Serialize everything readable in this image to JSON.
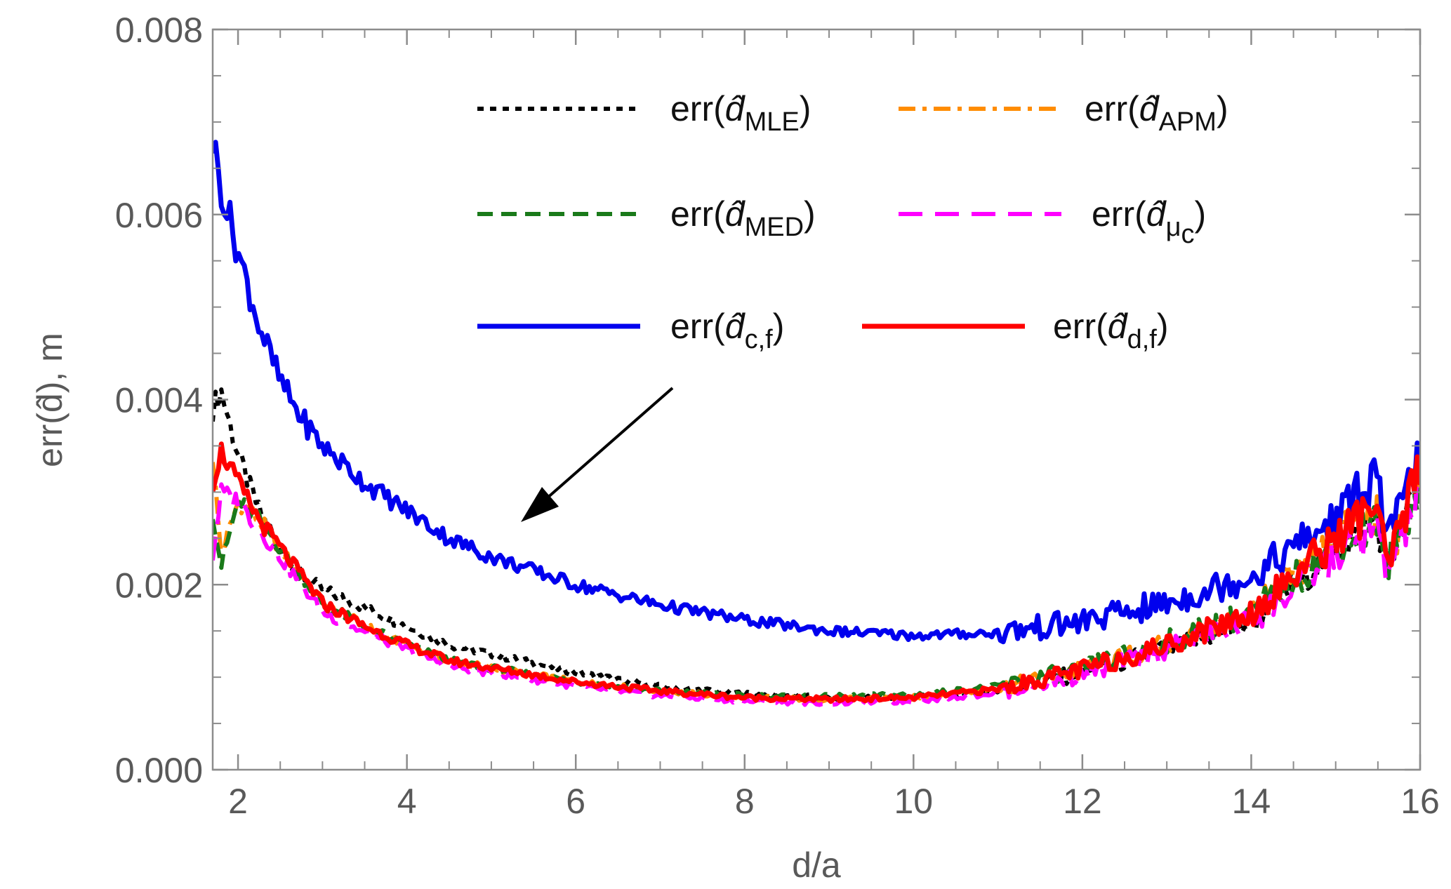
{
  "chart_data": {
    "type": "line",
    "title": "",
    "xlabel": "d/a",
    "ylabel": "err(d̂), m",
    "xlim": [
      1.7,
      16
    ],
    "ylim": [
      0,
      0.008
    ],
    "xticks": [
      2,
      4,
      6,
      8,
      10,
      12,
      14,
      16
    ],
    "xtick_labels": [
      "2",
      "4",
      "6",
      "8",
      "10",
      "12",
      "14",
      "16"
    ],
    "yticks": [
      0,
      0.002,
      0.004,
      0.006,
      0.008
    ],
    "ytick_labels": [
      "0.000",
      "0.002",
      "0.004",
      "0.006",
      "0.008"
    ],
    "grid": false,
    "legend_position": "top-right",
    "annotation": "arrow pointing from legend to curves",
    "x": [
      1.7,
      1.8,
      2.0,
      2.25,
      2.5,
      2.75,
      3.0,
      3.5,
      4.0,
      4.5,
      5.0,
      6.0,
      7.0,
      8.0,
      9.0,
      10.0,
      11.0,
      12.0,
      13.0,
      14.0,
      15.0,
      15.5,
      15.6,
      16.0
    ],
    "series": [
      {
        "name": "err(d̂MLE)",
        "label_parts": [
          "err(",
          "d",
          "MLE",
          ")"
        ],
        "color": "#000000",
        "dash": "dotted",
        "values": [
          0.0039,
          0.0041,
          0.0034,
          0.0028,
          0.0024,
          0.0021,
          0.00195,
          0.00175,
          0.00155,
          0.00135,
          0.00125,
          0.00105,
          0.0009,
          0.00082,
          0.00078,
          0.00078,
          0.00085,
          0.00105,
          0.0013,
          0.0016,
          0.0024,
          0.0027,
          0.0022,
          0.0031
        ]
      },
      {
        "name": "err(d̂APM)",
        "label_parts": [
          "err(",
          "d",
          "APM",
          ")"
        ],
        "color": "#ff8c00",
        "dash": "dashdot",
        "values": [
          0.0034,
          0.0023,
          0.0029,
          0.0027,
          0.0024,
          0.0021,
          0.0018,
          0.00155,
          0.00135,
          0.00118,
          0.0011,
          0.00095,
          0.00085,
          0.00078,
          0.00076,
          0.00078,
          0.00088,
          0.00108,
          0.00135,
          0.0017,
          0.0025,
          0.0028,
          0.0022,
          0.0032
        ]
      },
      {
        "name": "err(d̂MED)",
        "label_parts": [
          "err(",
          "d",
          "MED",
          ")"
        ],
        "color": "#1a7a1a",
        "dash": "dashed",
        "values": [
          0.0028,
          0.0022,
          0.0029,
          0.0027,
          0.0024,
          0.0021,
          0.0018,
          0.00155,
          0.00135,
          0.00118,
          0.0011,
          0.00095,
          0.00085,
          0.0008,
          0.00079,
          0.00081,
          0.0009,
          0.0011,
          0.00138,
          0.0017,
          0.0024,
          0.0027,
          0.0022,
          0.0031
        ]
      },
      {
        "name": "err(d̂μc)",
        "label_parts": [
          "err(",
          "d",
          "μ",
          "c",
          ")"
        ],
        "color": "#ff00ff",
        "dash": "longdash",
        "values": [
          0.0023,
          0.003,
          0.0029,
          0.0026,
          0.0023,
          0.002,
          0.0017,
          0.00148,
          0.0013,
          0.00112,
          0.00104,
          0.0009,
          0.0008,
          0.00074,
          0.00072,
          0.00074,
          0.00083,
          0.00102,
          0.0013,
          0.0016,
          0.0023,
          0.0026,
          0.0021,
          0.003
        ]
      },
      {
        "name": "err(d̂c,f)",
        "label_parts": [
          "err(",
          "d",
          "c,f",
          ")"
        ],
        "color": "#0000ee",
        "dash": "solid",
        "values": [
          0.0068,
          0.0063,
          0.0056,
          0.0048,
          0.0042,
          0.0038,
          0.0035,
          0.0031,
          0.0028,
          0.0025,
          0.0023,
          0.002,
          0.00178,
          0.00162,
          0.0015,
          0.00145,
          0.00148,
          0.0016,
          0.0018,
          0.0021,
          0.0027,
          0.0032,
          0.0024,
          0.0034
        ]
      },
      {
        "name": "err(d̂d,f)",
        "label_parts": [
          "err(",
          "d",
          "d,f",
          ")"
        ],
        "color": "#ff0000",
        "dash": "solid",
        "values": [
          0.0031,
          0.00345,
          0.0031,
          0.0027,
          0.0024,
          0.0021,
          0.0018,
          0.00155,
          0.00135,
          0.00118,
          0.0011,
          0.00095,
          0.00085,
          0.00078,
          0.00076,
          0.00078,
          0.00087,
          0.00108,
          0.00135,
          0.0017,
          0.0025,
          0.0029,
          0.0021,
          0.0033
        ]
      }
    ]
  }
}
